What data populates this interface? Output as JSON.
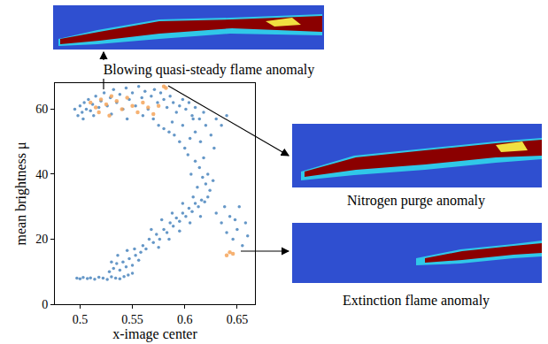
{
  "chart_data": {
    "type": "scatter",
    "x_label": "x-image center",
    "y_label": "mean brightness μ",
    "xlim": [
      0.476,
      0.667
    ],
    "ylim": [
      0,
      68
    ],
    "xticks": [
      0.5,
      0.55,
      0.6,
      0.65
    ],
    "yticks": [
      0,
      20,
      40,
      60
    ],
    "grid": false,
    "annotations": [
      "Blowing quasi-steady flame anomaly",
      "Nitrogen purge anomaly",
      "Extinction flame anomaly"
    ],
    "series": [
      {
        "color": "#4a85bd",
        "marker": "circle",
        "x": [
          0.497,
          0.5,
          0.503,
          0.507,
          0.51,
          0.514,
          0.518,
          0.522,
          0.526,
          0.53,
          0.534,
          0.538,
          0.542,
          0.546,
          0.55,
          0.528,
          0.532,
          0.535,
          0.538,
          0.541,
          0.544,
          0.547,
          0.55,
          0.553,
          0.556,
          0.53,
          0.536,
          0.545,
          0.552,
          0.558,
          0.56,
          0.563,
          0.566,
          0.57,
          0.573,
          0.576,
          0.58,
          0.583,
          0.586,
          0.589,
          0.592,
          0.595,
          0.598,
          0.601,
          0.604,
          0.607,
          0.61,
          0.613,
          0.616,
          0.619,
          0.622,
          0.568,
          0.578,
          0.588,
          0.598,
          0.608,
          0.575,
          0.585,
          0.595,
          0.605,
          0.615,
          0.624,
          0.62,
          0.617,
          0.622,
          0.614,
          0.61,
          0.618,
          0.627,
          0.612,
          0.606,
          0.603,
          0.6,
          0.595,
          0.59,
          0.585,
          0.58,
          0.605,
          0.61,
          0.615,
          0.62,
          0.625,
          0.63,
          0.598,
          0.588,
          0.575,
          0.57,
          0.608,
          0.618,
          0.635,
          0.628,
          0.64,
          0.495,
          0.498,
          0.5,
          0.502,
          0.504,
          0.506,
          0.508,
          0.51,
          0.512,
          0.515,
          0.518,
          0.52,
          0.523,
          0.526,
          0.529,
          0.532,
          0.535,
          0.538,
          0.541,
          0.544,
          0.547,
          0.55,
          0.553,
          0.556,
          0.559,
          0.562,
          0.565,
          0.568,
          0.571,
          0.574,
          0.577,
          0.58,
          0.583,
          0.586,
          0.589,
          0.592,
          0.595,
          0.598,
          0.601,
          0.604,
          0.607,
          0.61,
          0.614,
          0.503,
          0.513,
          0.53,
          0.56,
          0.545,
          0.63,
          0.635,
          0.64,
          0.643,
          0.646,
          0.65,
          0.655,
          0.66,
          0.638,
          0.648,
          0.652,
          0.658
        ],
        "values": [
          8,
          7.8,
          8.2,
          7.9,
          8.1,
          7.7,
          8.3,
          8,
          7.6,
          8.4,
          8,
          7.8,
          8.5,
          9,
          9.5,
          10,
          11,
          12.5,
          10.5,
          13,
          11.5,
          14,
          12,
          15,
          13.5,
          13,
          15,
          16.5,
          17,
          16,
          18,
          17,
          20,
          19,
          21.5,
          20,
          23,
          22,
          25,
          24,
          26.5,
          25.5,
          28,
          27,
          29.5,
          28.5,
          31,
          30,
          32,
          31.5,
          33,
          23,
          26,
          28,
          31,
          33,
          17.5,
          20,
          22.5,
          25,
          27,
          35,
          37,
          39,
          40,
          42,
          44,
          45,
          38,
          36,
          40,
          46,
          48,
          50,
          52,
          53,
          54,
          51,
          53,
          50,
          55,
          52,
          57,
          55,
          56,
          55,
          57,
          57,
          59,
          55,
          48,
          58,
          60,
          58,
          61,
          59,
          62,
          60,
          63,
          59.5,
          61.5,
          64,
          60.5,
          62.5,
          65,
          61,
          63.5,
          66,
          62,
          64.5,
          60,
          66.5,
          63,
          65,
          61,
          67,
          63.5,
          65.5,
          60,
          64,
          66,
          62,
          65,
          63,
          60.5,
          64,
          62,
          59,
          61,
          63,
          60,
          62,
          58,
          60.5,
          57,
          57,
          58,
          58.5,
          58,
          57,
          28,
          25,
          22,
          27,
          20,
          23,
          18,
          21,
          30,
          26,
          30,
          25
        ]
      },
      {
        "color": "#f5a55a",
        "marker": "circle",
        "x": [
          0.51,
          0.515,
          0.52,
          0.525,
          0.53,
          0.535,
          0.54,
          0.545,
          0.55,
          0.555,
          0.56,
          0.565,
          0.57,
          0.575,
          0.528,
          0.518,
          0.58,
          0.582,
          0.64,
          0.643,
          0.646
        ],
        "values": [
          62,
          60.5,
          63,
          61.5,
          64,
          62.5,
          60,
          63.5,
          61,
          59,
          62,
          60.5,
          58.5,
          61,
          58,
          59,
          67,
          66.5,
          15,
          16,
          15.5
        ]
      }
    ]
  }
}
